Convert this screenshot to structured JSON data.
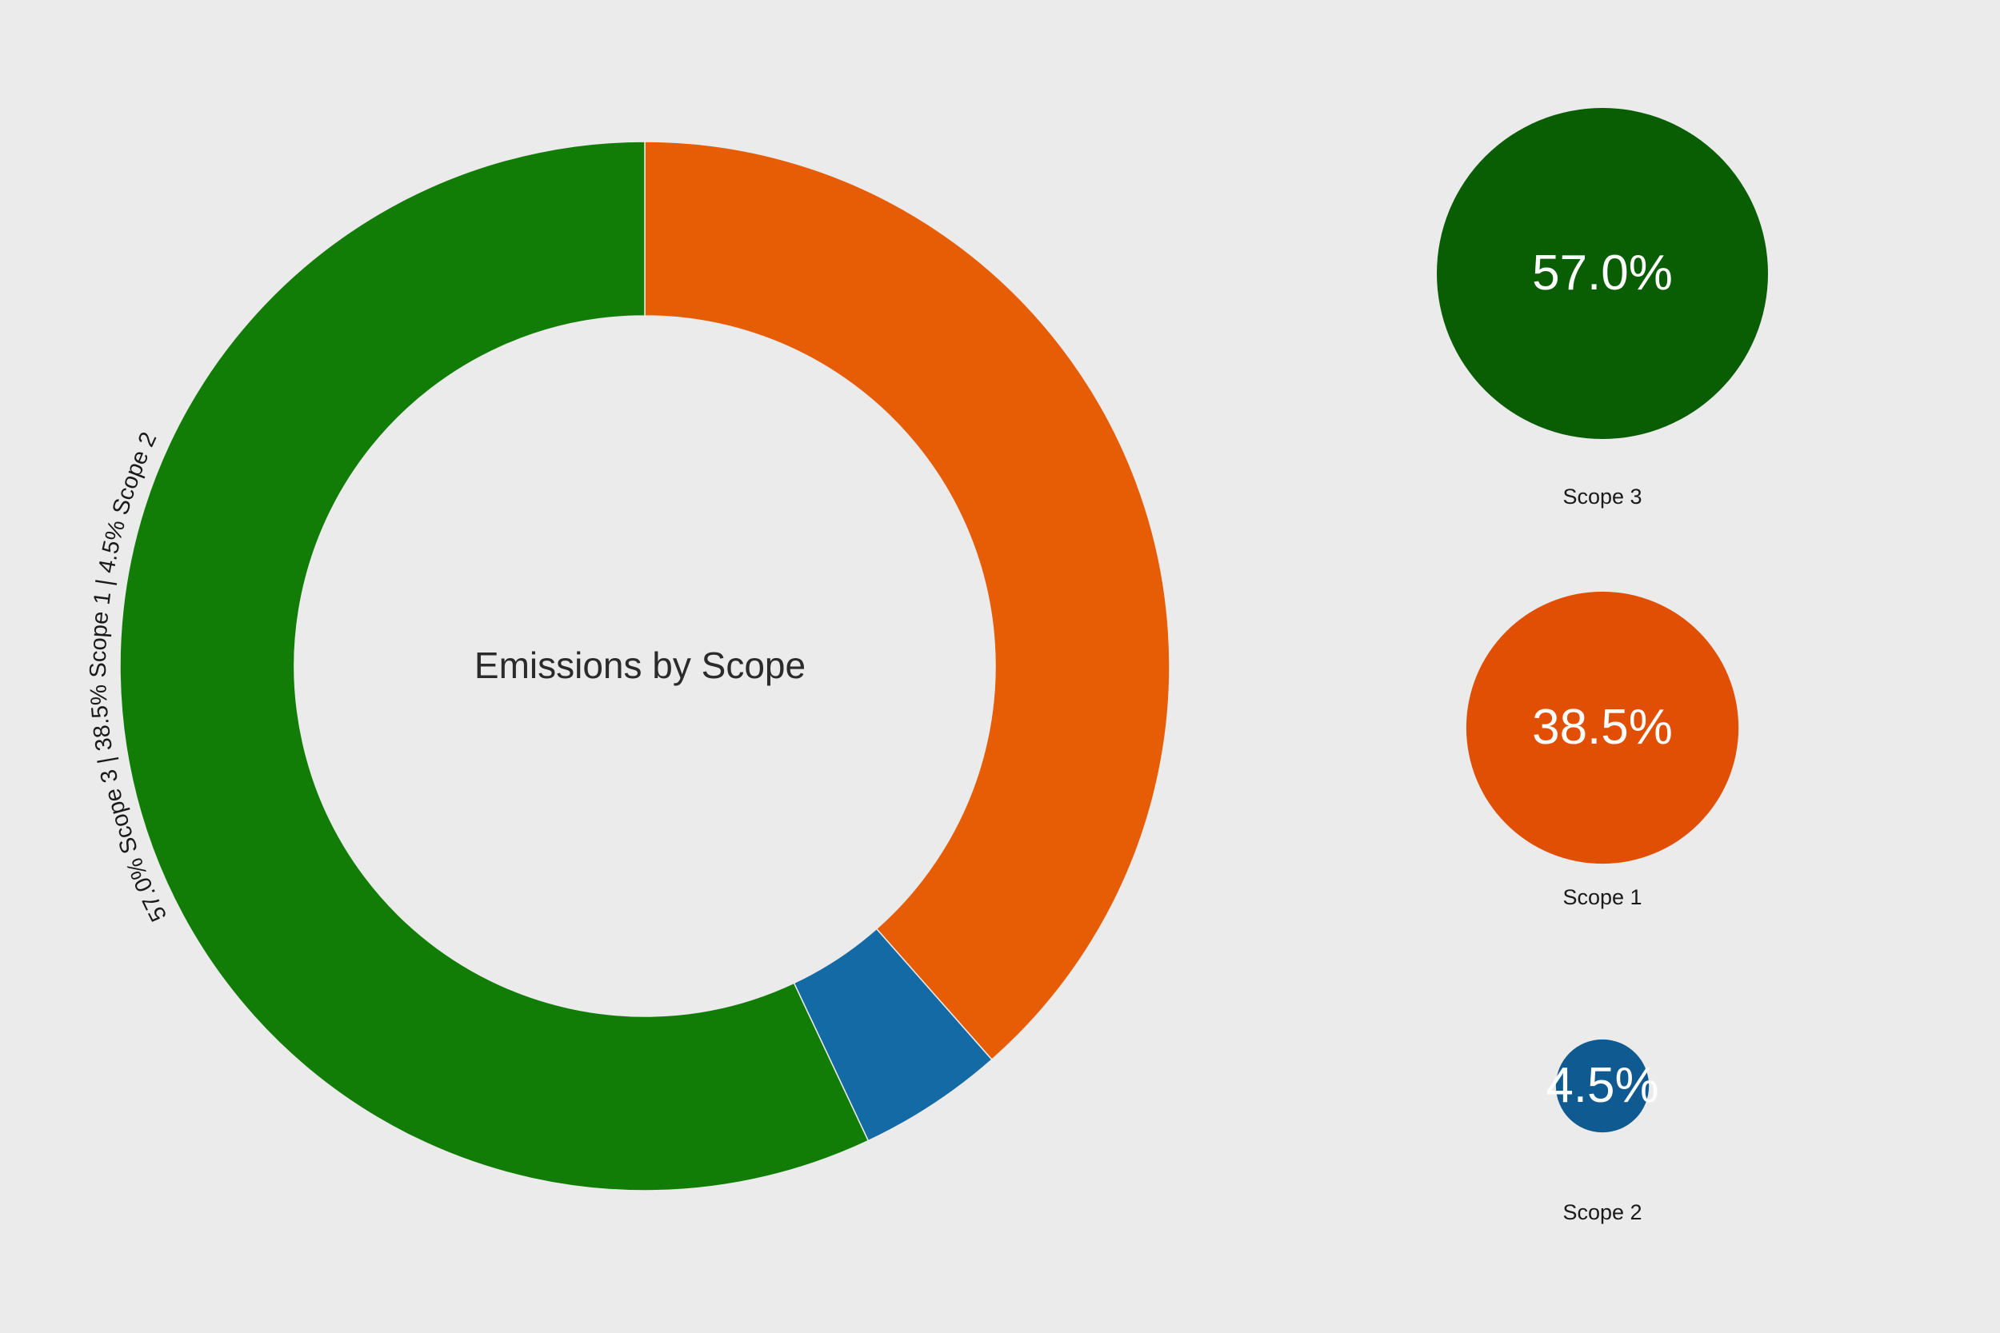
{
  "chart_data": {
    "type": "pie",
    "title": "Emissions by Scope",
    "arc_label": "57.0% Scope 3 | 38.5% Scope 1 | 4.5% Scope 2",
    "slice_order": [
      "Scope 1",
      "Scope 2",
      "Scope 3"
    ],
    "slices": [
      {
        "label": "Scope 3",
        "value": 57.0,
        "display": "57.0%",
        "color": "#127d06"
      },
      {
        "label": "Scope 1",
        "value": 38.5,
        "display": "38.5%",
        "color": "#e65d06"
      },
      {
        "label": "Scope 2",
        "value": 4.5,
        "display": "4.5%",
        "color": "#136aa4"
      }
    ],
    "bubble_colors": {
      "Scope 3": "#095e04",
      "Scope 1": "#e04f04",
      "Scope 2": "#0f5b91"
    },
    "start_angle": "top",
    "direction": "clockwise",
    "bubble_order": [
      "Scope 3",
      "Scope 1",
      "Scope 2"
    ]
  }
}
